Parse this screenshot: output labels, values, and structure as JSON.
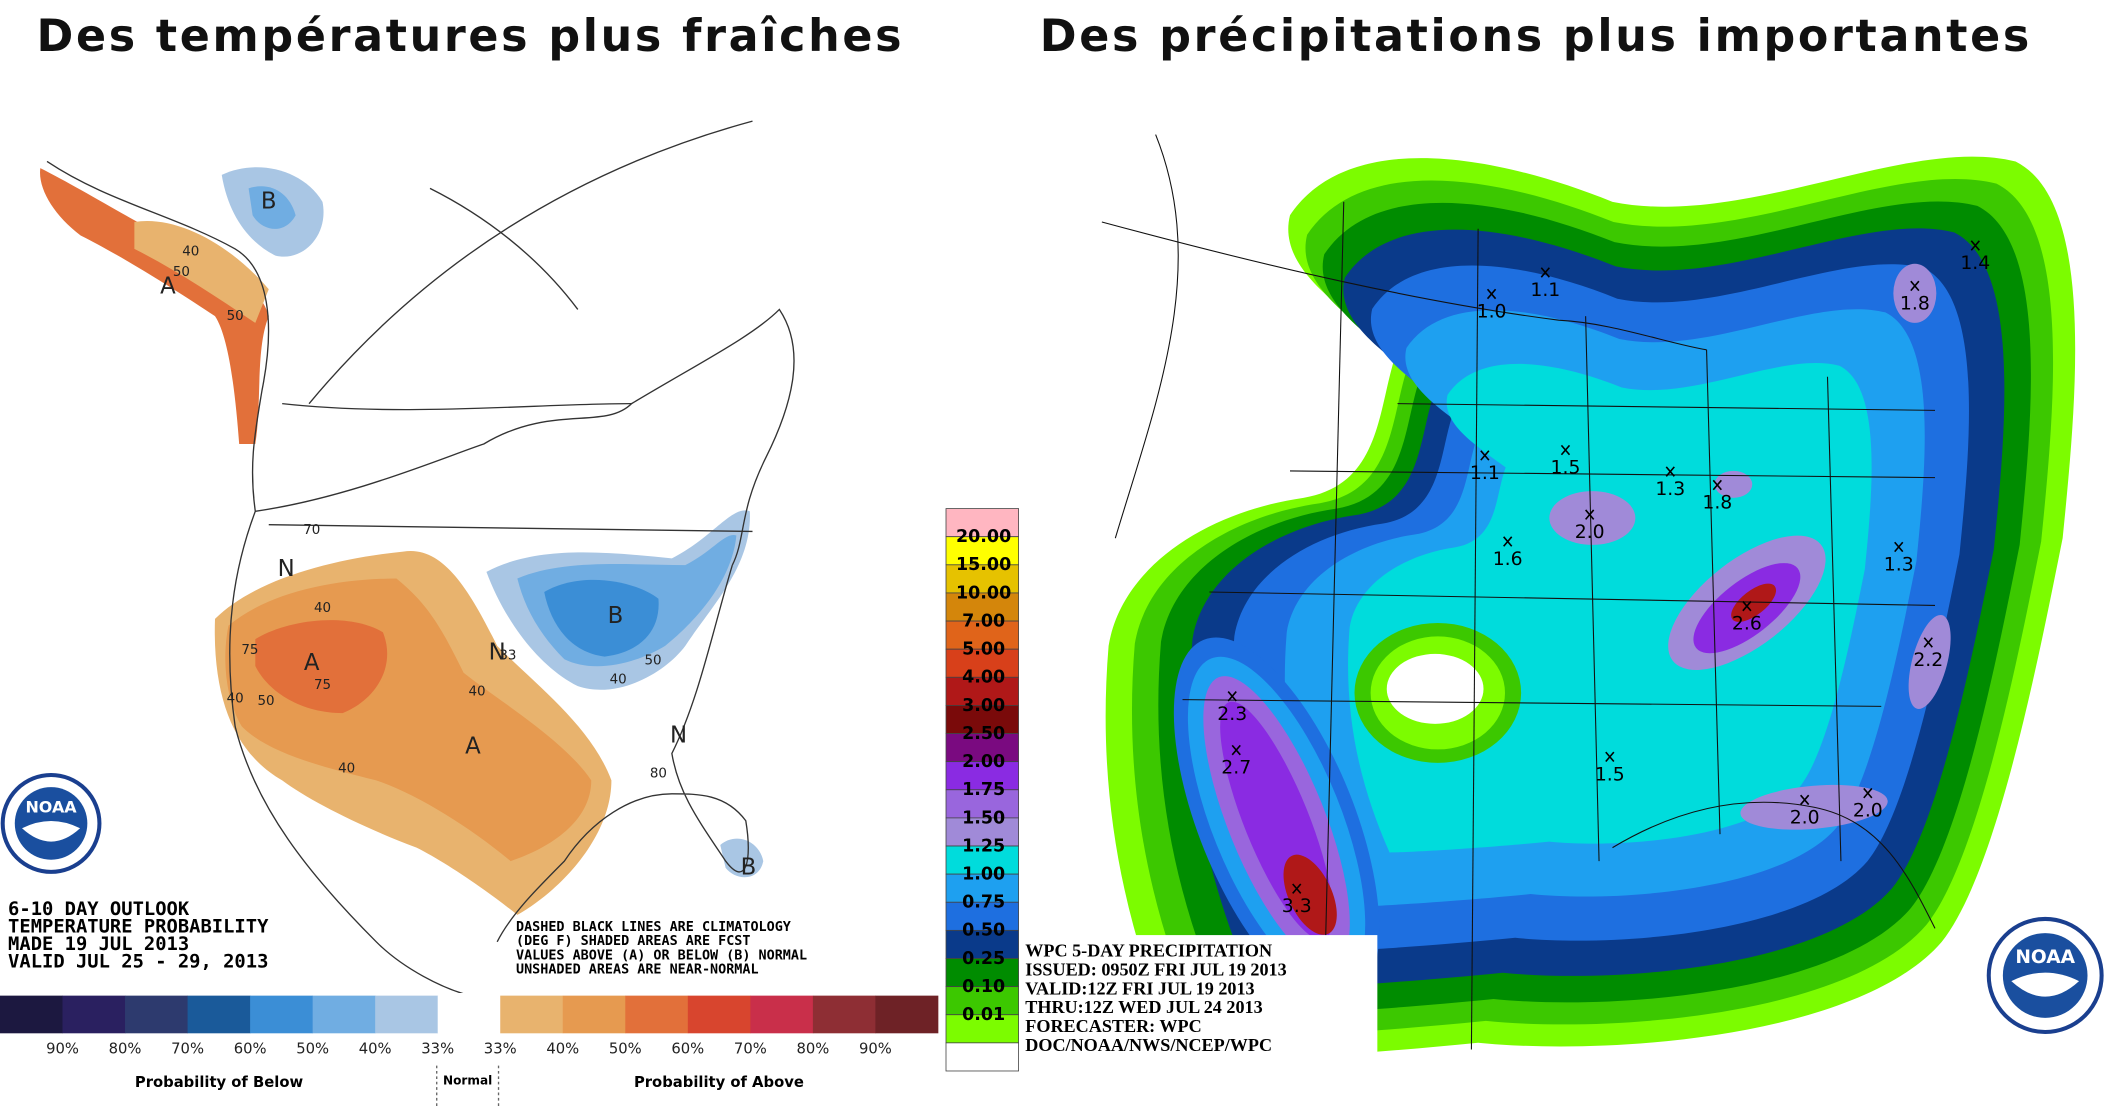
{
  "titles": {
    "left": "Des températures plus fraîches",
    "right": "Des précipitations plus importantes"
  },
  "temperature_map": {
    "labels": [
      "A",
      "B",
      "A",
      "A",
      "B",
      "N",
      "N",
      "N",
      "B",
      "40",
      "50",
      "50",
      "40",
      "50",
      "40",
      "33",
      "40",
      "50",
      "40",
      "40",
      "70",
      "75",
      "75",
      "80"
    ],
    "outlook": [
      "6-10 DAY OUTLOOK",
      "TEMPERATURE PROBABILITY",
      "MADE   19 JUL 2013",
      "VALID  JUL 25 - 29, 2013"
    ],
    "note": [
      "DASHED BLACK LINES ARE CLIMATOLOGY",
      "(DEG F) SHADED AREAS ARE FCST",
      "VALUES ABOVE (A) OR BELOW (B) NORMAL",
      "UNSHADED AREAS ARE NEAR-NORMAL"
    ],
    "logo": "NOAA"
  },
  "temperature_legend": {
    "colors": [
      "#1c1840",
      "#2a2060",
      "#2d3a6e",
      "#1a5a9a",
      "#3b8ed6",
      "#70ade2",
      "#a9c6e4",
      "#ffffff",
      "#e8b36e",
      "#e69a50",
      "#e2703a",
      "#d8452e",
      "#c92f4a",
      "#8e2e34",
      "#6e2226"
    ],
    "percent_labels": [
      "90%",
      "80%",
      "70%",
      "60%",
      "50%",
      "40%",
      "33%",
      "33%",
      "40%",
      "50%",
      "60%",
      "70%",
      "80%",
      "90%"
    ],
    "below": "Probability of Below",
    "normal": "Normal",
    "above": "Probability of Above"
  },
  "precip_legend": {
    "levels": [
      "20.00",
      "15.00",
      "10.00",
      "7.00",
      "5.00",
      "4.00",
      "3.00",
      "2.50",
      "2.00",
      "1.75",
      "1.50",
      "1.25",
      "1.00",
      "0.75",
      "0.50",
      "0.25",
      "0.10",
      "0.01"
    ],
    "colors": [
      "#ffb6c1",
      "#ffff00",
      "#e6c200",
      "#d4860b",
      "#e0641a",
      "#d8401a",
      "#b01818",
      "#7a0a0a",
      "#7a0a80",
      "#8a2be2",
      "#9966dd",
      "#a08ad8",
      "#00dcdc",
      "#1ea0f0",
      "#1e6fe0",
      "#0a3a8a",
      "#008c00",
      "#3cc800",
      "#7cfc00",
      "#ffffff"
    ]
  },
  "precip_map": {
    "amounts": [
      "1.0",
      "1.1",
      "1.4",
      "1.8",
      "1.1",
      "1.5",
      "1.3",
      "1.8",
      "2.0",
      "1.6",
      "1.3",
      "2.6",
      "2.2",
      "2.3",
      "2.7",
      "1.5",
      "2.0",
      "2.0",
      "3.3"
    ],
    "info": [
      "WPC 5-DAY PRECIPITATION",
      "ISSUED: 0950Z FRI JUL 19 2013",
      "VALID:12Z FRI JUL 19 2013",
      "THRU:12Z WED JUL 24 2013",
      "FORECASTER: WPC",
      "DOC/NOAA/NWS/NCEP/WPC"
    ],
    "logo": "NOAA"
  }
}
